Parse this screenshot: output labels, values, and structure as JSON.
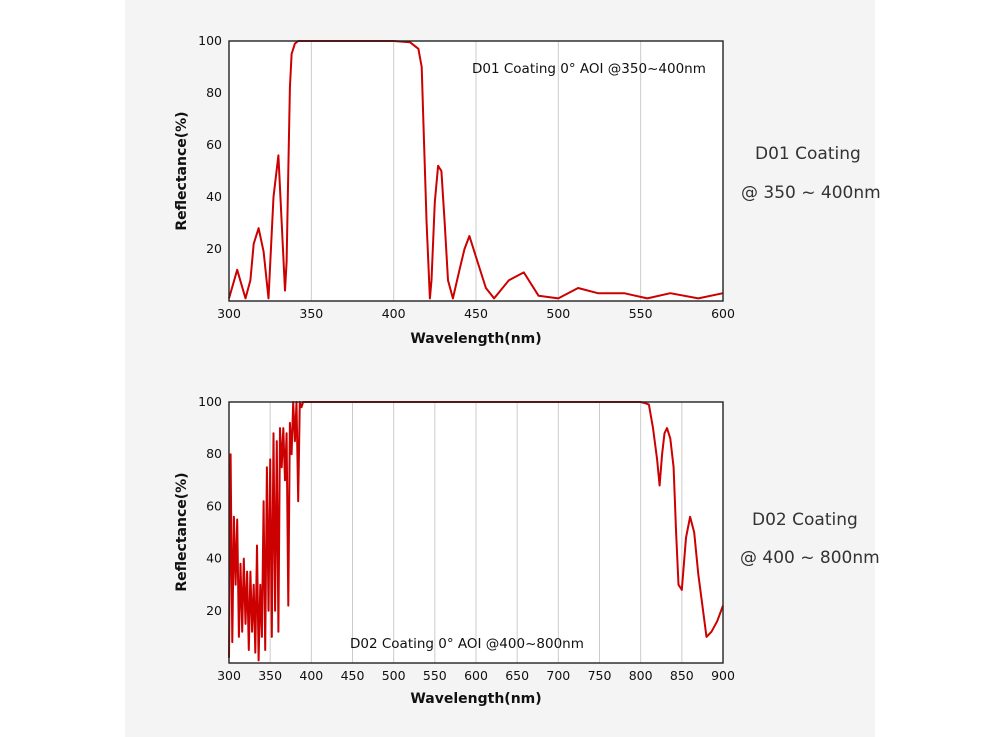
{
  "colors": {
    "curve": "#cc0000",
    "grid": "#cccccc",
    "panel": "#f4f4f5"
  },
  "chart_data": [
    {
      "type": "line",
      "id": "d01",
      "annotation": "D01 Coating  0°  AOI @350~400nm",
      "side_title": "D01 Coating",
      "side_subtitle": "@ 350 ~ 400nm",
      "xlabel": "Wavelength(nm)",
      "ylabel": "Reflectance(%)",
      "xlim": [
        300,
        600
      ],
      "ylim": [
        0,
        100
      ],
      "xticks": [
        300,
        350,
        400,
        450,
        500,
        550,
        600
      ],
      "yticks": [
        20,
        40,
        60,
        80,
        100
      ],
      "series": [
        {
          "name": "D01",
          "x": [
            300,
            305,
            310,
            313,
            315,
            318,
            321,
            324,
            327,
            330,
            332,
            334,
            335,
            336,
            337,
            338,
            340,
            342,
            345,
            350,
            400,
            410,
            415,
            417,
            418,
            420,
            422,
            423,
            425,
            427,
            429,
            431,
            433,
            436,
            440,
            443,
            446,
            451,
            456,
            461,
            470,
            479,
            488,
            500,
            512,
            524,
            540,
            554,
            568,
            585,
            600
          ],
          "y": [
            1,
            12,
            1,
            8,
            22,
            28,
            19,
            1,
            40,
            56,
            30,
            4,
            15,
            50,
            82,
            95,
            99,
            100,
            100,
            100,
            100,
            99.5,
            97,
            90,
            70,
            30,
            1,
            8,
            38,
            52,
            50,
            30,
            8,
            1,
            12,
            20,
            25,
            15,
            5,
            1,
            8,
            11,
            2,
            1,
            5,
            3,
            3,
            1,
            3,
            1,
            3
          ]
        }
      ]
    },
    {
      "type": "line",
      "id": "d02",
      "annotation": "D02 Coating  0°  AOI @400~800nm",
      "side_title": "D02 Coating",
      "side_subtitle": "@ 400 ~ 800nm",
      "xlabel": "Wavelength(nm)",
      "ylabel": "Reflectance(%)",
      "xlim": [
        300,
        900
      ],
      "ylim": [
        0,
        100
      ],
      "xticks": [
        300,
        350,
        400,
        450,
        500,
        550,
        600,
        650,
        700,
        750,
        800,
        850,
        900
      ],
      "yticks": [
        20,
        40,
        60,
        80,
        100
      ],
      "series": [
        {
          "name": "D02",
          "x": [
            300,
            302,
            304,
            306,
            308,
            310,
            312,
            314,
            316,
            318,
            320,
            322,
            324,
            326,
            328,
            330,
            332,
            334,
            336,
            338,
            340,
            342,
            344,
            346,
            348,
            350,
            352,
            354,
            356,
            358,
            360,
            362,
            364,
            366,
            368,
            370,
            372,
            374,
            376,
            378,
            380,
            382,
            384,
            386,
            388,
            390,
            395,
            400,
            500,
            600,
            700,
            800,
            806,
            810,
            815,
            820,
            823,
            826,
            829,
            832,
            836,
            840,
            843,
            846,
            850,
            855,
            860,
            865,
            870,
            880,
            886,
            893,
            900
          ],
          "y": [
            2,
            80,
            8,
            56,
            30,
            55,
            10,
            38,
            12,
            40,
            15,
            35,
            5,
            35,
            12,
            30,
            4,
            45,
            1,
            30,
            10,
            62,
            5,
            75,
            20,
            78,
            10,
            88,
            20,
            85,
            12,
            90,
            75,
            90,
            70,
            88,
            22,
            92,
            80,
            100,
            85,
            100,
            62,
            100,
            98,
            100,
            100,
            100,
            100,
            100,
            100,
            100,
            99.5,
            99,
            90,
            78,
            68,
            80,
            88,
            90,
            86,
            75,
            50,
            30,
            28,
            48,
            56,
            50,
            34,
            10,
            12,
            16,
            22
          ]
        }
      ]
    }
  ]
}
